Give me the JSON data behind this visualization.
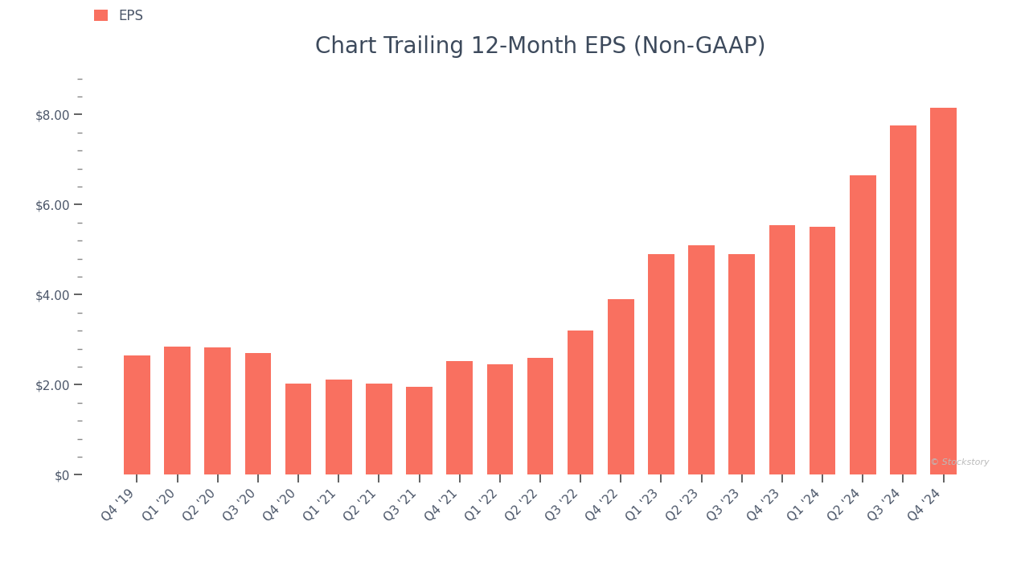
{
  "title": "Chart Trailing 12-Month EPS (Non-GAAP)",
  "legend_label": "EPS",
  "bar_color": "#F97060",
  "background_color": "#ffffff",
  "categories": [
    "Q4 '19",
    "Q1 '20",
    "Q2 '20",
    "Q3 '20",
    "Q4 '20",
    "Q1 '21",
    "Q2 '21",
    "Q3 '21",
    "Q4 '21",
    "Q1 '22",
    "Q2 '22",
    "Q3 '22",
    "Q4 '22",
    "Q1 '23",
    "Q2 '23",
    "Q3 '23",
    "Q4 '23",
    "Q1 '24",
    "Q2 '24",
    "Q3 '24",
    "Q4 '24"
  ],
  "values": [
    2.65,
    2.85,
    2.82,
    2.7,
    2.02,
    2.12,
    2.02,
    1.95,
    2.52,
    2.45,
    2.6,
    3.2,
    3.9,
    4.9,
    5.1,
    4.9,
    5.55,
    5.5,
    6.65,
    7.75,
    8.15
  ],
  "ylim": [
    0,
    9.0
  ],
  "yticks_major": [
    0,
    2.0,
    4.0,
    6.0,
    8.0
  ],
  "ytick_labels": [
    "$0",
    "$2.00",
    "$4.00",
    "$6.00",
    "$8.00"
  ],
  "minor_ytick_interval": 0.4,
  "title_fontsize": 20,
  "tick_fontsize": 11,
  "legend_fontsize": 12,
  "watermark": "© Stockstory",
  "title_color": "#3d4a5c",
  "tick_color": "#4a5568",
  "legend_color": "#4a5568"
}
